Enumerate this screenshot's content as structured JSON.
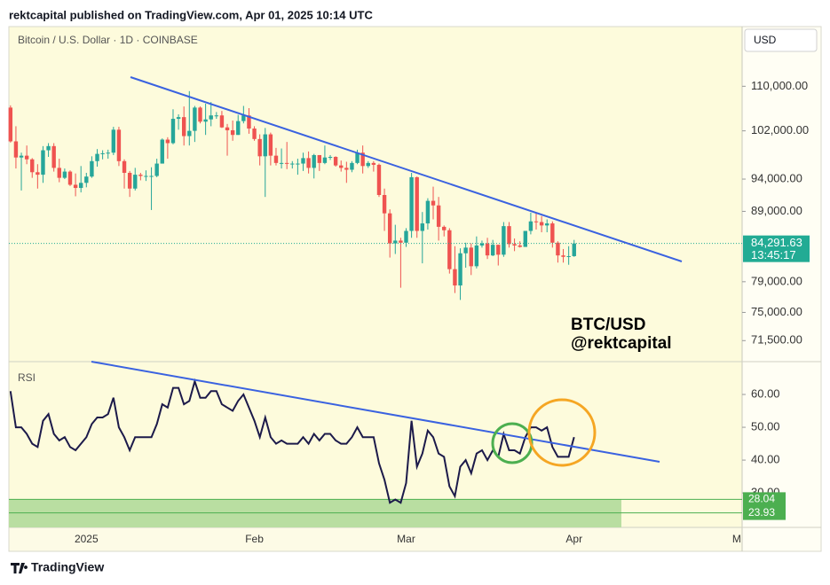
{
  "header": "rektcapital published on TradingView.com, Apr 01, 2025 10:14 UTC",
  "footer": "TradingView",
  "currency": "USD",
  "watermark": [
    "BTC/USD",
    "@rektcapital"
  ],
  "chart_data": [
    {
      "type": "candlestick",
      "title": "Bitcoin / U.S. Dollar · 1D · COINBASE",
      "log_scale": true,
      "up_color": "#26a69a",
      "down_color": "#ef5350",
      "xlim": [
        -0.3,
        135
      ],
      "xticks": [
        {
          "value": 14,
          "label": "2025"
        },
        {
          "value": 45,
          "label": "Feb"
        },
        {
          "value": 73,
          "label": "Mar"
        },
        {
          "value": 104,
          "label": "Apr"
        },
        {
          "value": 134,
          "label": "M"
        }
      ],
      "ylim": [
        69000,
        121700
      ],
      "yticks": [
        {
          "value": 110000,
          "label": "110,000.00"
        },
        {
          "value": 102000,
          "label": "102,000.00"
        },
        {
          "value": 94000,
          "label": "94,000.00"
        },
        {
          "value": 89000,
          "label": "89,000.00"
        },
        {
          "value": 79000,
          "label": "79,000.00"
        },
        {
          "value": 75000,
          "label": "75,000.00"
        },
        {
          "value": 71500,
          "label": "71,500.00"
        }
      ],
      "last": {
        "value": 84291.63,
        "label": "84,291.63"
      },
      "countdown": "13:45:17",
      "last_color": "#22ab94",
      "open": [
        106100,
        100200,
        97500,
        97800,
        97200,
        95100,
        94700,
        98700,
        99400,
        95800,
        94200,
        95200,
        93100,
        92600,
        93400,
        94400,
        96900,
        98100,
        98200,
        98300,
        102200,
        96900,
        95000,
        92500,
        94700,
        94500,
        94500,
        94500,
        96500,
        100500,
        99900,
        104100,
        104400,
        101100,
        102000,
        106100,
        103600,
        104000,
        104700,
        104700,
        102600,
        102100,
        101300,
        103700,
        104700,
        102400,
        100600,
        97700,
        101400,
        97800,
        96600,
        96600,
        96500,
        96500,
        96500,
        97400,
        95800,
        97900,
        96600,
        97500,
        97600,
        96200,
        95800,
        95500,
        96600,
        98300,
        96100,
        96600,
        96300,
        91500,
        88700,
        84300,
        84700,
        84400,
        86100,
        94300,
        86100,
        87200,
        90600,
        89900,
        86700,
        86200,
        80700,
        78500,
        82900,
        83700,
        81100,
        84000,
        84300,
        82600,
        84100,
        82700,
        86800,
        84200,
        84000,
        83800,
        86100,
        87500,
        87400,
        86900,
        87200,
        84400,
        82600,
        82400,
        82500
      ],
      "high": [
        106500,
        102800,
        98300,
        99500,
        97400,
        96400,
        99400,
        99900,
        99900,
        97300,
        95700,
        95400,
        94900,
        96100,
        95000,
        97700,
        98900,
        98700,
        98800,
        102700,
        102700,
        97200,
        95300,
        95800,
        95000,
        95400,
        95900,
        97300,
        100700,
        100900,
        105800,
        104900,
        106300,
        109100,
        106400,
        106300,
        106800,
        107100,
        105300,
        105500,
        103200,
        103800,
        104800,
        106400,
        106000,
        102800,
        101400,
        102500,
        101700,
        99100,
        99000,
        100100,
        96900,
        97300,
        98300,
        98500,
        98100,
        97900,
        99500,
        97900,
        97700,
        97000,
        96800,
        96900,
        98800,
        99500,
        96900,
        96900,
        96500,
        92500,
        89300,
        87000,
        85100,
        86500,
        95000,
        94400,
        88900,
        91000,
        92800,
        91200,
        86900,
        86500,
        83900,
        83600,
        84400,
        84300,
        85300,
        84700,
        85100,
        84800,
        84100,
        87400,
        87400,
        85000,
        84600,
        86100,
        88800,
        88700,
        88300,
        87800,
        87500,
        84600,
        83500,
        83900,
        84800
      ],
      "low": [
        100000,
        95700,
        92200,
        96400,
        94200,
        92500,
        93400,
        97600,
        95200,
        93500,
        94000,
        92900,
        91300,
        91900,
        92700,
        94200,
        96000,
        97200,
        97300,
        97900,
        96100,
        92500,
        91200,
        92200,
        93800,
        93700,
        89200,
        94300,
        96500,
        97300,
        99700,
        102200,
        99500,
        99500,
        100100,
        103300,
        101300,
        102800,
        104100,
        102500,
        97800,
        100300,
        101300,
        103300,
        101500,
        100300,
        96200,
        91200,
        96200,
        96200,
        95700,
        95600,
        95700,
        94700,
        95300,
        94900,
        94100,
        95300,
        96400,
        97100,
        96000,
        95200,
        93400,
        95100,
        96400,
        94900,
        95800,
        95200,
        91200,
        86100,
        82300,
        82800,
        78200,
        83800,
        85100,
        85100,
        81500,
        86300,
        87800,
        84700,
        85300,
        80100,
        77500,
        76600,
        80900,
        79900,
        80800,
        83700,
        82100,
        82500,
        81200,
        82400,
        83700,
        83200,
        83700,
        83800,
        85600,
        86300,
        85900,
        85900,
        83700,
        81600,
        81600,
        81300,
        82400
      ],
      "close": [
        100200,
        97500,
        97800,
        97200,
        95100,
        94700,
        98700,
        99400,
        95800,
        94200,
        95200,
        93100,
        92600,
        93400,
        94400,
        96900,
        98100,
        98200,
        98300,
        102200,
        96900,
        95000,
        92500,
        94700,
        94500,
        94500,
        94500,
        96500,
        100500,
        99900,
        104100,
        104400,
        101100,
        102000,
        106100,
        103600,
        104000,
        104700,
        104700,
        102600,
        102100,
        101300,
        103700,
        104700,
        102400,
        100600,
        97700,
        101400,
        97800,
        96600,
        96600,
        96500,
        96500,
        96500,
        97400,
        95800,
        97900,
        96600,
        97500,
        97600,
        96200,
        95800,
        95500,
        96600,
        98300,
        96100,
        96600,
        96300,
        91500,
        88700,
        84300,
        84700,
        84400,
        86100,
        94300,
        86100,
        87200,
        90600,
        89900,
        86700,
        86200,
        80700,
        78500,
        82900,
        83700,
        81100,
        84000,
        84300,
        82600,
        84100,
        82700,
        86800,
        84200,
        84000,
        83800,
        86100,
        87500,
        87400,
        86900,
        87200,
        84400,
        82600,
        82400,
        82500,
        84291.63
      ]
    },
    {
      "type": "line",
      "title": "RSI",
      "color": "#1c1a4a",
      "level_color": "#4caf50",
      "ylim": [
        19.5,
        70
      ],
      "yticks": [
        {
          "value": 60,
          "label": "60.00"
        },
        {
          "value": 50,
          "label": "50.00"
        },
        {
          "value": 40,
          "label": "40.00"
        },
        {
          "value": 30,
          "label": "30.00"
        }
      ],
      "levels": [
        28.04,
        23.93
      ],
      "values": [
        61,
        50,
        50,
        48,
        45,
        44,
        52,
        54,
        48,
        46,
        47,
        44,
        43,
        45,
        47,
        51,
        53,
        53,
        54,
        59,
        50,
        47,
        43,
        47,
        47,
        47,
        47,
        51,
        57,
        56,
        62,
        62,
        57,
        58,
        64,
        59,
        59,
        61,
        61,
        57,
        56,
        55,
        58,
        60,
        56,
        52,
        47,
        53,
        47,
        45,
        46,
        45,
        45,
        45,
        47,
        45,
        48,
        46,
        48,
        48,
        46,
        45,
        45,
        47,
        50,
        47,
        47,
        47,
        39,
        34,
        27,
        28,
        27,
        33,
        52,
        38,
        42,
        49,
        47,
        42,
        41,
        32,
        29,
        38,
        40,
        36,
        42,
        43,
        40,
        43,
        41,
        48,
        43,
        43,
        42,
        47,
        50,
        50,
        49,
        50,
        44,
        41,
        41,
        41,
        47
      ]
    }
  ]
}
